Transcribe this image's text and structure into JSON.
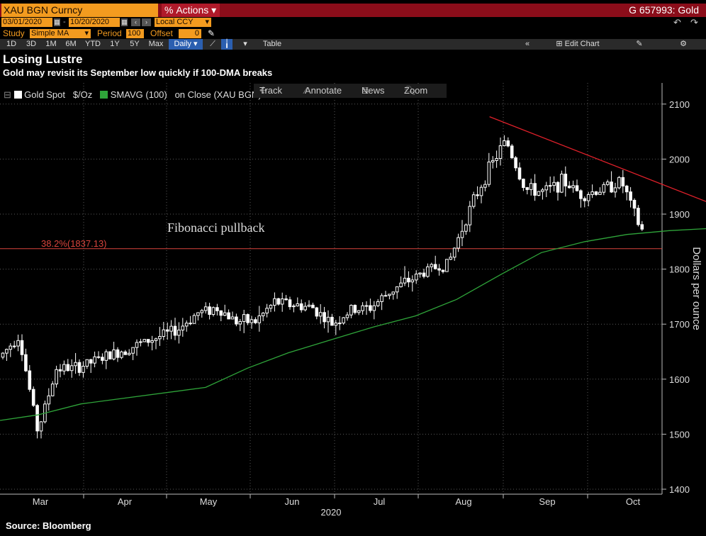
{
  "header": {
    "ticker": "XAU BGN Curncy",
    "actions_label": "Actions",
    "security_id": "G 657993: Gold"
  },
  "range": {
    "start_date": "03/01/2020",
    "end_date": "10/20/2020",
    "currency": "Local CCY"
  },
  "study": {
    "study_label": "Study",
    "study_value": "Simple MA",
    "period_label": "Period",
    "period_value": "100",
    "offset_label": "Offset",
    "offset_value": "0"
  },
  "periods": [
    "1D",
    "3D",
    "1M",
    "6M",
    "YTD",
    "1Y",
    "5Y",
    "Max"
  ],
  "frequency": "Daily",
  "toolbar": {
    "table_label": "Table",
    "edit_chart_label": "Edit Chart"
  },
  "chart_tools": {
    "track": "Track",
    "annotate": "Annotate",
    "news": "News",
    "zoom": "Zoom"
  },
  "legend": {
    "series1": "Gold Spot",
    "series1_unit": "$/Oz",
    "series2": "SMAVG (100)",
    "series2_suffix": "on Close (XAU BGN)",
    "series2_value": "1875.16"
  },
  "colors": {
    "ticker_bg": "#f39b1f",
    "header_bar": "#8b0d1a",
    "candle": "#ffffff",
    "sma": "#2fa53a",
    "trendline": "#e0202a",
    "fib": "#d9443c"
  },
  "icons": [
    "calendar-icon",
    "arrow-left-icon",
    "arrow-right-icon",
    "undo-icon",
    "redo-icon",
    "pencil-icon",
    "gear-icon",
    "double-chevron-left-icon",
    "line-chart-icon",
    "candle-icon"
  ],
  "title": "Losing Lustre",
  "subtitle": "Gold may revisit its September low quickly if 100-DMA breaks",
  "source": "Source: Bloomberg",
  "chart_data": {
    "type": "line",
    "title": "Losing Lustre",
    "subtitle": "Gold may revisit its September low quickly if 100-DMA breaks",
    "ylabel": "Dollars per ounce",
    "xlabel": "2020",
    "ylim": [
      1400,
      2120
    ],
    "yticks": [
      1400,
      1500,
      1600,
      1700,
      1800,
      1900,
      2000,
      2100
    ],
    "xtick_labels": [
      "Mar",
      "Apr",
      "May",
      "Jun",
      "Jul",
      "Aug",
      "Sep",
      "Oct"
    ],
    "year_label": "2020",
    "grid": true,
    "legend_position": "top-left",
    "series": [
      {
        "name": "Gold Spot",
        "style": "candles",
        "x": [
          "2020-03-01",
          "2020-03-08",
          "2020-03-15",
          "2020-03-22",
          "2020-03-29",
          "2020-04-05",
          "2020-04-12",
          "2020-04-19",
          "2020-04-26",
          "2020-05-03",
          "2020-05-10",
          "2020-05-17",
          "2020-05-24",
          "2020-05-31",
          "2020-06-07",
          "2020-06-14",
          "2020-06-21",
          "2020-06-28",
          "2020-07-05",
          "2020-07-12",
          "2020-07-19",
          "2020-07-26",
          "2020-08-02",
          "2020-08-09",
          "2020-08-16",
          "2020-08-23",
          "2020-08-30",
          "2020-09-06",
          "2020-09-13",
          "2020-09-20",
          "2020-09-27",
          "2020-10-04",
          "2020-10-11",
          "2020-10-18"
        ],
        "values": [
          1640,
          1680,
          1505,
          1620,
          1620,
          1690,
          1720,
          1730,
          1705,
          1705,
          1740,
          1735,
          1730,
          1700,
          1725,
          1730,
          1760,
          1780,
          1800,
          1810,
          1900,
          1975,
          2035,
          1945,
          1940,
          1960,
          1935,
          1945,
          1960,
          1870,
          1885,
          1905,
          1925,
          1905
        ]
      },
      {
        "name": "SMAVG (100)",
        "x": [
          "2020-03-01",
          "2020-03-15",
          "2020-03-31",
          "2020-04-15",
          "2020-04-30",
          "2020-05-15",
          "2020-05-31",
          "2020-06-15",
          "2020-06-30",
          "2020-07-15",
          "2020-07-31",
          "2020-08-15",
          "2020-08-31",
          "2020-09-15",
          "2020-09-30",
          "2020-10-15",
          "2020-10-20"
        ],
        "values": [
          1525,
          1535,
          1555,
          1585,
          1620,
          1648,
          1672,
          1695,
          1715,
          1745,
          1790,
          1830,
          1850,
          1863,
          1870,
          1874,
          1875
        ]
      }
    ],
    "annotations": [
      {
        "text": "Fibonacci pullback"
      },
      {
        "text": "38.2%(1837.13)",
        "value": 1837.13
      },
      {
        "text": "trendline",
        "from": [
          "2020-07-27",
          2077
        ],
        "to": [
          "2020-10-15",
          1920
        ]
      }
    ]
  }
}
